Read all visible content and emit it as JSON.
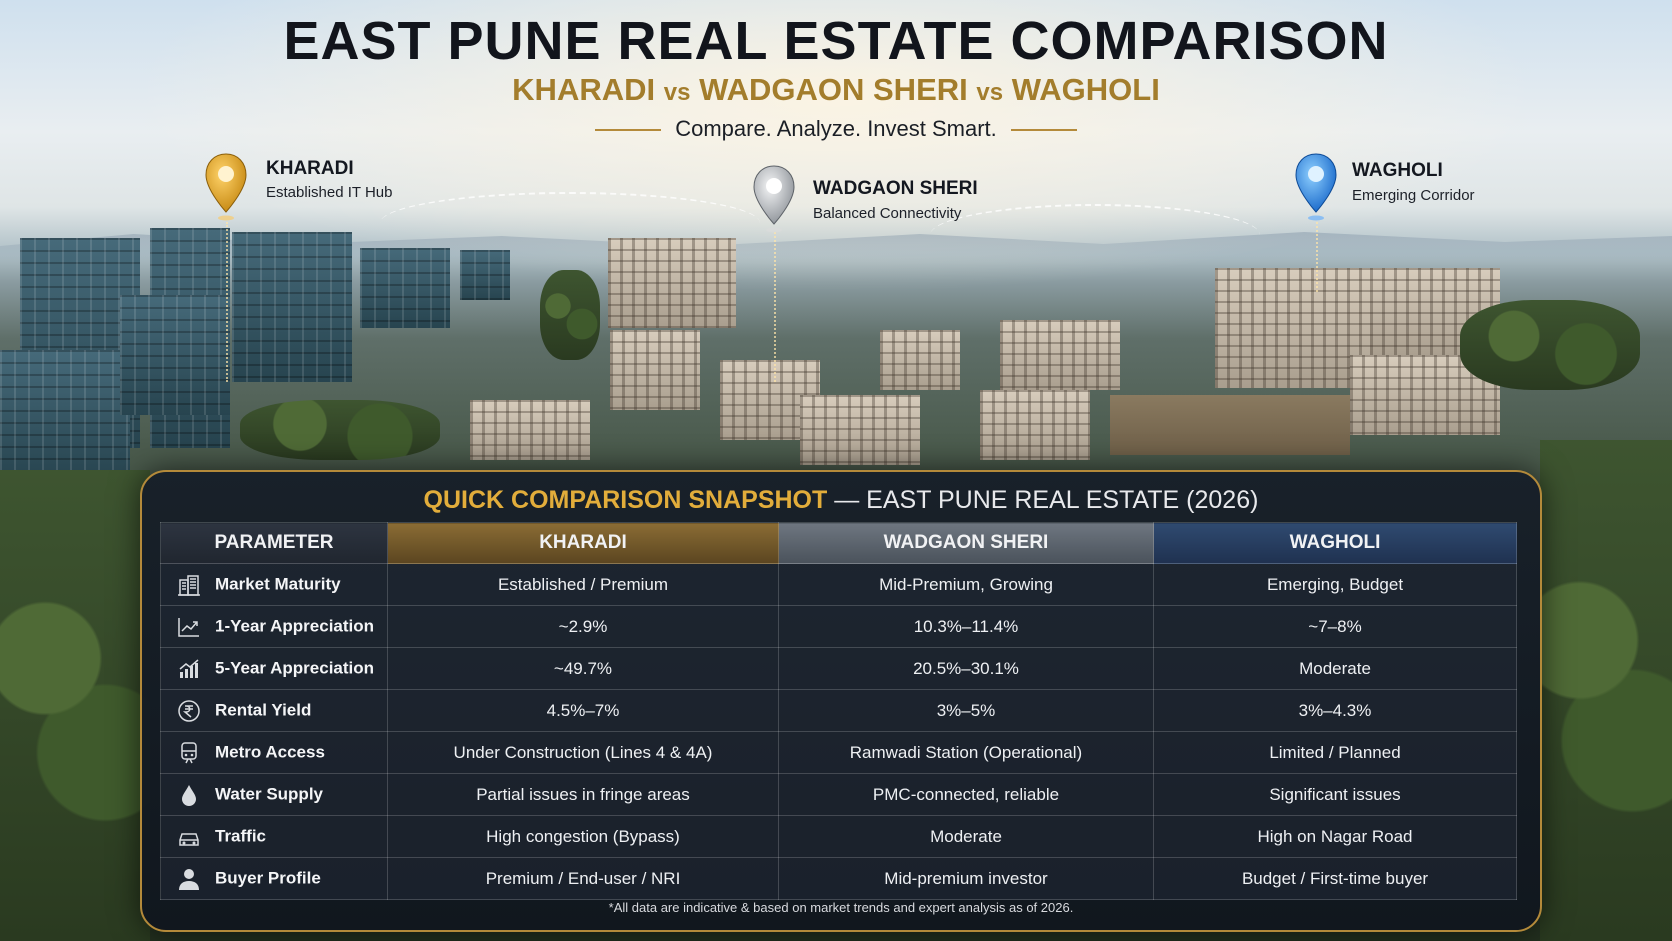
{
  "header": {
    "title": "EAST PUNE REAL ESTATE COMPARISON",
    "subtitle_part1": "KHARADI",
    "subtitle_vs": "vs",
    "subtitle_part2": "WADGAON SHERI",
    "subtitle_part3": "WAGHOLI",
    "tagline": "Compare. Analyze. Invest Smart."
  },
  "locations": [
    {
      "name": "KHARADI",
      "desc": "Established IT Hub",
      "pin_color": "#e5a626"
    },
    {
      "name": "WADGAON SHERI",
      "desc": "Balanced Connectivity",
      "pin_color": "#9aa0a6"
    },
    {
      "name": "WAGHOLI",
      "desc": "Emerging Corridor",
      "pin_color": "#2a86e8"
    }
  ],
  "panel": {
    "title_accent": "QUICK COMPARISON SNAPSHOT",
    "title_rest": " — EAST PUNE REAL ESTATE (2026)",
    "columns": [
      "PARAMETER",
      "KHARADI",
      "WADGAON SHERI",
      "WAGHOLI"
    ],
    "rows": [
      {
        "icon": "building-icon",
        "param": "Market Maturity",
        "values": [
          "Established / Premium",
          "Mid-Premium, Growing",
          "Emerging, Budget"
        ]
      },
      {
        "icon": "line-chart-icon",
        "param": "1-Year Appreciation",
        "values": [
          "~2.9%",
          "10.3%–11.4%",
          "~7–8%"
        ]
      },
      {
        "icon": "growth-chart-icon",
        "param": "5-Year Appreciation",
        "values": [
          "~49.7%",
          "20.5%–30.1%",
          "Moderate"
        ]
      },
      {
        "icon": "rupee-icon",
        "param": "Rental Yield",
        "values": [
          "4.5%–7%",
          "3%–5%",
          "3%–4.3%"
        ]
      },
      {
        "icon": "metro-train-icon",
        "param": "Metro Access",
        "values": [
          "Under Construction (Lines 4 & 4A)",
          "Ramwadi Station (Operational)",
          "Limited / Planned"
        ]
      },
      {
        "icon": "water-drop-icon",
        "param": "Water Supply",
        "values": [
          "Partial issues in fringe areas",
          "PMC-connected, reliable",
          "Significant issues"
        ]
      },
      {
        "icon": "car-icon",
        "param": "Traffic",
        "values": [
          "High congestion (Bypass)",
          "Moderate",
          "High on Nagar Road"
        ]
      },
      {
        "icon": "person-icon",
        "param": "Buyer Profile",
        "values": [
          "Premium / End-user / NRI",
          "Mid-premium investor",
          "Budget / First-time buyer"
        ]
      }
    ],
    "footnote": "*All data are indicative & based on market trends and expert analysis as of 2026."
  }
}
